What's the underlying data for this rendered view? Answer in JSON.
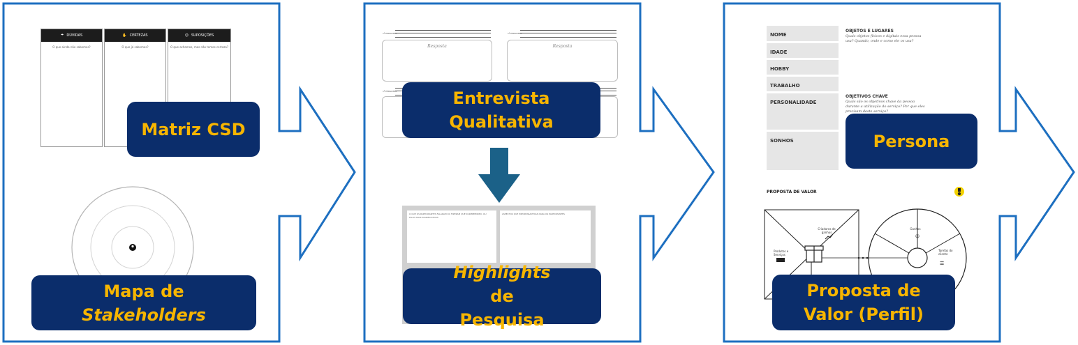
{
  "stages": [
    {
      "labels": [
        {
          "lines": [
            "Matriz CSD"
          ]
        },
        {
          "line1": "Mapa de",
          "line2": "Stakeholders"
        }
      ],
      "csd_columns": [
        "DÚVIDAS",
        "CERTEZAS",
        "SUPOSIÇÕES"
      ],
      "csd_questions": [
        "O que ainda não sabemos?",
        "O que já sabemos?",
        "O que achamos, mas não temos certeza?"
      ]
    },
    {
      "labels": [
        {
          "line1": "Entrevista",
          "line2": "Qualitativa"
        },
        {
          "line1a": "Highlights",
          "line1b": " de",
          "line2": "Pesquisa"
        }
      ],
      "interview": {
        "question_label": "1ª PERGUNTA",
        "answer_placeholder": "Resposta"
      },
      "highlights_headers": [
        "O QUE OS PARTICIPANTES FALARAM OU FIZERAM QUE SURPREENDEU, OU FALAS MAIS SIGNIFICATIVAS",
        "ASPECTOS QUE IMPORTARAM MAIS PARA OS PARTICIPANTES"
      ],
      "colors": {
        "down_arrow": "#1b6188"
      }
    },
    {
      "labels": [
        {
          "lines": [
            "Persona"
          ]
        },
        {
          "line1": "Proposta de",
          "line2": "Valor (Perfil)"
        }
      ],
      "persona_fields": [
        "NOME",
        "IDADE",
        "HOBBY",
        "TRABALHO",
        "PERSONALIDADE",
        "SONHOS"
      ],
      "persona_sections": [
        {
          "title": "OBJETOS E LUGARES",
          "text": "Quais objetos físicos e digitais essa pessoa usa? Quando, onde e como ele os usa?"
        },
        {
          "title": "OBJETIVOS CHAVE",
          "text": "Quais são os objetivos chave da pessoa durante a utilização do serviço? Por que eles precisam deste serviço?"
        }
      ],
      "value_prop": {
        "title": "PROPOSTA DE VALOR",
        "gain_creators": "Criadores de ganhos",
        "products": "Produtos e Serviços",
        "gains": "Ganhos",
        "customer_jobs": "Tarefas do cliente"
      }
    }
  ],
  "colors": {
    "frame": "#1d6fc0",
    "label_bg": "#0b2d6b",
    "label_text": "#f7b500"
  }
}
